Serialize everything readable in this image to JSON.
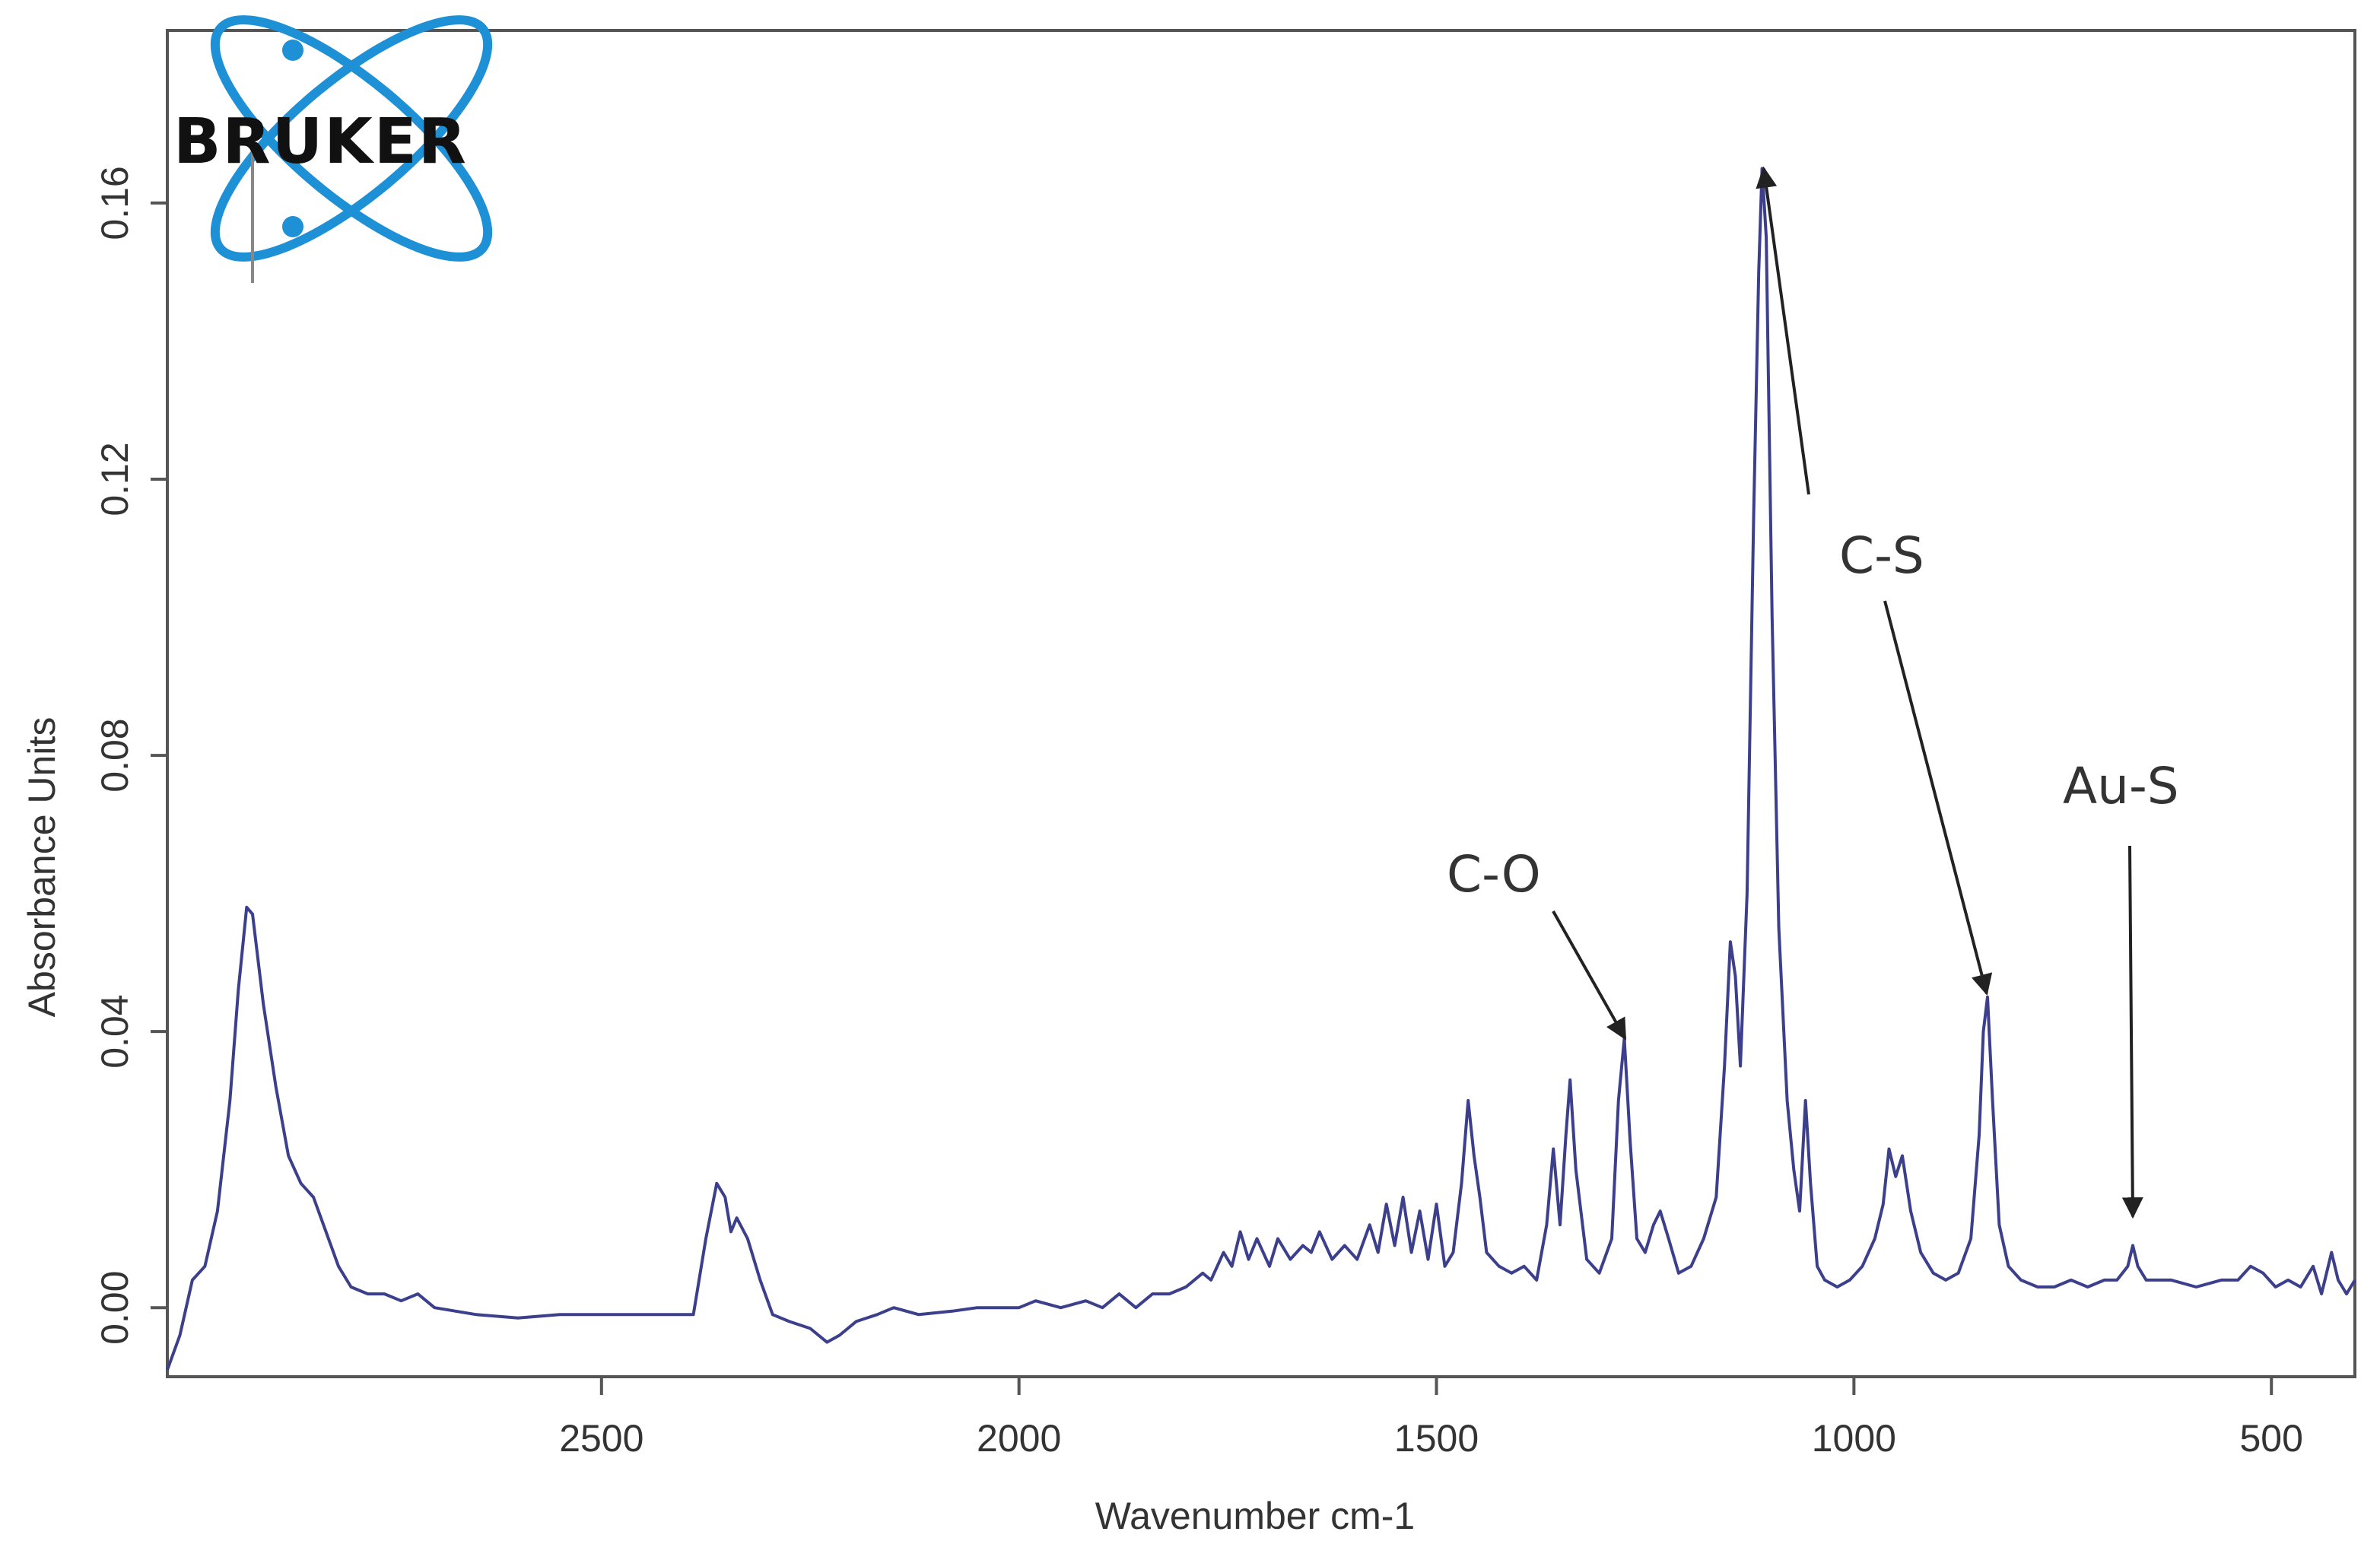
{
  "logo": {
    "text": "BRUKER",
    "color": "#1e90d6"
  },
  "chart_data": {
    "type": "line",
    "title": "",
    "xlabel": "Wavenumber cm-1",
    "ylabel": "Absorbance Units",
    "xlim": [
      3020,
      400
    ],
    "ylim": [
      -0.01,
      0.185
    ],
    "x_reversed": true,
    "grid": false,
    "xticks": [
      2500,
      2000,
      1500,
      1000,
      500
    ],
    "xtick_labels": [
      "2500",
      "2000",
      "1500",
      "1000",
      "500"
    ],
    "yticks": [
      0.0,
      0.04,
      0.08,
      0.12,
      0.16
    ],
    "ytick_labels": [
      "0.00",
      "0.04",
      "0.08",
      "0.12",
      "0.16"
    ],
    "series": [
      {
        "color": "#3c3f8c",
        "points": [
          [
            3020,
            -0.009
          ],
          [
            3005,
            -0.004
          ],
          [
            2990,
            0.004
          ],
          [
            2975,
            0.006
          ],
          [
            2960,
            0.014
          ],
          [
            2945,
            0.03
          ],
          [
            2935,
            0.046
          ],
          [
            2925,
            0.058
          ],
          [
            2918,
            0.057
          ],
          [
            2905,
            0.044
          ],
          [
            2890,
            0.032
          ],
          [
            2875,
            0.022
          ],
          [
            2860,
            0.018
          ],
          [
            2845,
            0.016
          ],
          [
            2830,
            0.011
          ],
          [
            2815,
            0.006
          ],
          [
            2800,
            0.003
          ],
          [
            2780,
            0.002
          ],
          [
            2760,
            0.002
          ],
          [
            2740,
            0.001
          ],
          [
            2720,
            0.002
          ],
          [
            2700,
            0.0
          ],
          [
            2650,
            -0.001
          ],
          [
            2600,
            -0.0015
          ],
          [
            2550,
            -0.001
          ],
          [
            2500,
            -0.001
          ],
          [
            2450,
            -0.001
          ],
          [
            2390,
            -0.001
          ],
          [
            2375,
            0.01
          ],
          [
            2362,
            0.018
          ],
          [
            2352,
            0.016
          ],
          [
            2345,
            0.011
          ],
          [
            2338,
            0.013
          ],
          [
            2325,
            0.01
          ],
          [
            2310,
            0.004
          ],
          [
            2295,
            -0.001
          ],
          [
            2275,
            -0.002
          ],
          [
            2250,
            -0.003
          ],
          [
            2230,
            -0.005
          ],
          [
            2215,
            -0.004
          ],
          [
            2195,
            -0.002
          ],
          [
            2170,
            -0.001
          ],
          [
            2150,
            0.0
          ],
          [
            2120,
            -0.001
          ],
          [
            2080,
            -0.0005
          ],
          [
            2050,
            0.0
          ],
          [
            2000,
            0.0
          ],
          [
            1980,
            0.001
          ],
          [
            1950,
            0.0
          ],
          [
            1920,
            0.001
          ],
          [
            1900,
            0.0
          ],
          [
            1880,
            0.002
          ],
          [
            1860,
            0.0
          ],
          [
            1840,
            0.002
          ],
          [
            1820,
            0.002
          ],
          [
            1800,
            0.003
          ],
          [
            1780,
            0.005
          ],
          [
            1770,
            0.004
          ],
          [
            1755,
            0.008
          ],
          [
            1745,
            0.006
          ],
          [
            1735,
            0.011
          ],
          [
            1725,
            0.007
          ],
          [
            1715,
            0.01
          ],
          [
            1700,
            0.006
          ],
          [
            1690,
            0.01
          ],
          [
            1675,
            0.007
          ],
          [
            1660,
            0.009
          ],
          [
            1650,
            0.008
          ],
          [
            1640,
            0.011
          ],
          [
            1625,
            0.007
          ],
          [
            1610,
            0.009
          ],
          [
            1595,
            0.007
          ],
          [
            1580,
            0.012
          ],
          [
            1570,
            0.008
          ],
          [
            1560,
            0.015
          ],
          [
            1550,
            0.009
          ],
          [
            1540,
            0.016
          ],
          [
            1530,
            0.008
          ],
          [
            1520,
            0.014
          ],
          [
            1510,
            0.007
          ],
          [
            1500,
            0.015
          ],
          [
            1490,
            0.006
          ],
          [
            1480,
            0.008
          ],
          [
            1470,
            0.018
          ],
          [
            1462,
            0.03
          ],
          [
            1455,
            0.022
          ],
          [
            1448,
            0.016
          ],
          [
            1440,
            0.008
          ],
          [
            1425,
            0.006
          ],
          [
            1410,
            0.005
          ],
          [
            1395,
            0.006
          ],
          [
            1380,
            0.004
          ],
          [
            1368,
            0.012
          ],
          [
            1360,
            0.023
          ],
          [
            1352,
            0.012
          ],
          [
            1345,
            0.025
          ],
          [
            1340,
            0.033
          ],
          [
            1333,
            0.02
          ],
          [
            1320,
            0.007
          ],
          [
            1305,
            0.005
          ],
          [
            1290,
            0.01
          ],
          [
            1282,
            0.03
          ],
          [
            1275,
            0.039
          ],
          [
            1268,
            0.024
          ],
          [
            1260,
            0.01
          ],
          [
            1250,
            0.008
          ],
          [
            1240,
            0.012
          ],
          [
            1232,
            0.014
          ],
          [
            1222,
            0.01
          ],
          [
            1210,
            0.005
          ],
          [
            1195,
            0.006
          ],
          [
            1180,
            0.01
          ],
          [
            1165,
            0.016
          ],
          [
            1155,
            0.035
          ],
          [
            1148,
            0.053
          ],
          [
            1142,
            0.048
          ],
          [
            1136,
            0.035
          ],
          [
            1128,
            0.06
          ],
          [
            1120,
            0.115
          ],
          [
            1114,
            0.15
          ],
          [
            1110,
            0.165
          ],
          [
            1105,
            0.155
          ],
          [
            1098,
            0.1
          ],
          [
            1090,
            0.055
          ],
          [
            1080,
            0.03
          ],
          [
            1072,
            0.02
          ],
          [
            1065,
            0.014
          ],
          [
            1058,
            0.03
          ],
          [
            1052,
            0.018
          ],
          [
            1044,
            0.006
          ],
          [
            1035,
            0.004
          ],
          [
            1020,
            0.003
          ],
          [
            1005,
            0.004
          ],
          [
            990,
            0.006
          ],
          [
            975,
            0.01
          ],
          [
            965,
            0.015
          ],
          [
            958,
            0.023
          ],
          [
            950,
            0.019
          ],
          [
            942,
            0.022
          ],
          [
            932,
            0.014
          ],
          [
            920,
            0.008
          ],
          [
            905,
            0.005
          ],
          [
            890,
            0.004
          ],
          [
            875,
            0.005
          ],
          [
            860,
            0.01
          ],
          [
            850,
            0.025
          ],
          [
            845,
            0.04
          ],
          [
            840,
            0.045
          ],
          [
            834,
            0.03
          ],
          [
            826,
            0.012
          ],
          [
            815,
            0.006
          ],
          [
            800,
            0.004
          ],
          [
            780,
            0.003
          ],
          [
            760,
            0.003
          ],
          [
            740,
            0.004
          ],
          [
            720,
            0.003
          ],
          [
            700,
            0.004
          ],
          [
            685,
            0.004
          ],
          [
            672,
            0.006
          ],
          [
            666,
            0.009
          ],
          [
            660,
            0.006
          ],
          [
            650,
            0.004
          ],
          [
            620,
            0.004
          ],
          [
            590,
            0.003
          ],
          [
            560,
            0.004
          ],
          [
            540,
            0.004
          ],
          [
            525,
            0.006
          ],
          [
            510,
            0.005
          ],
          [
            495,
            0.003
          ],
          [
            480,
            0.004
          ],
          [
            465,
            0.003
          ],
          [
            450,
            0.006
          ],
          [
            440,
            0.002
          ],
          [
            428,
            0.008
          ],
          [
            420,
            0.004
          ],
          [
            410,
            0.002
          ],
          [
            400,
            0.004
          ]
        ]
      }
    ],
    "annotations": [
      {
        "text": "C-S",
        "target": [
          1108,
          0.165
        ]
      },
      {
        "text": "C-S",
        "target": [
          841,
          0.0455
        ]
      },
      {
        "text": "C-O",
        "target": [
          1274,
          0.039
        ]
      },
      {
        "text": "Au-S",
        "target": [
          666,
          0.0132
        ]
      }
    ]
  }
}
